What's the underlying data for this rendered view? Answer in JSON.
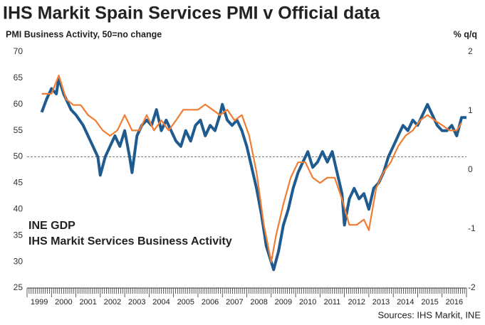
{
  "chart_data": {
    "type": "line",
    "title": "IHS Markit Spain Services PMI v Official data",
    "y_axis_label": "PMI Business Activity, 50=no change",
    "y2_axis_label": "% q/q",
    "source": "Sources: IHS Markit, INE",
    "xlim": [
      1999,
      2017
    ],
    "xticks": [
      {
        "value": 1999.5,
        "label": "1999"
      },
      {
        "value": 2000.5,
        "label": "2000"
      },
      {
        "value": 2001.5,
        "label": "2001"
      },
      {
        "value": 2002.5,
        "label": "2002"
      },
      {
        "value": 2003.5,
        "label": "2003"
      },
      {
        "value": 2004.5,
        "label": "2004"
      },
      {
        "value": 2005.5,
        "label": "2005"
      },
      {
        "value": 2006.5,
        "label": "2006"
      },
      {
        "value": 2007.5,
        "label": "2007"
      },
      {
        "value": 2008.5,
        "label": "2008"
      },
      {
        "value": 2009.5,
        "label": "2009"
      },
      {
        "value": 2010.5,
        "label": "2010"
      },
      {
        "value": 2011.5,
        "label": "2011"
      },
      {
        "value": 2012.5,
        "label": "2012"
      },
      {
        "value": 2013.5,
        "label": "2013"
      },
      {
        "value": 2014.5,
        "label": "2014"
      },
      {
        "value": 2015.5,
        "label": "2015"
      },
      {
        "value": 2016.5,
        "label": "2016"
      }
    ],
    "ylim": [
      25,
      70
    ],
    "yticks": [
      25,
      30,
      35,
      40,
      45,
      50,
      55,
      60,
      65,
      70
    ],
    "y2lim": [
      -2,
      2
    ],
    "y2ticks": [
      -2,
      -1,
      0,
      1,
      2
    ],
    "reference_line": 50,
    "series": [
      {
        "name": "INE GDP",
        "color": "#f07d32",
        "axis": "y2",
        "x": [
          1999.6,
          2000.0,
          2000.3,
          2000.6,
          2000.9,
          2001.2,
          2001.5,
          2001.8,
          2002.1,
          2002.4,
          2002.7,
          2003.0,
          2003.3,
          2003.6,
          2003.9,
          2004.2,
          2004.5,
          2004.8,
          2005.1,
          2005.4,
          2005.7,
          2006.0,
          2006.3,
          2006.6,
          2006.9,
          2007.2,
          2007.5,
          2007.8,
          2008.1,
          2008.4,
          2008.7,
          2009.0,
          2009.2,
          2009.5,
          2009.8,
          2010.1,
          2010.4,
          2010.7,
          2011.0,
          2011.3,
          2011.6,
          2011.9,
          2012.2,
          2012.5,
          2012.8,
          2013.0,
          2013.3,
          2013.6,
          2013.9,
          2014.2,
          2014.5,
          2014.8,
          2015.1,
          2015.4,
          2015.7,
          2016.0,
          2016.3,
          2016.6,
          2016.8
        ],
        "values": [
          1.29,
          1.29,
          1.6,
          1.2,
          1.1,
          1.1,
          0.93,
          0.84,
          0.67,
          0.58,
          0.67,
          0.93,
          0.67,
          0.67,
          0.93,
          0.67,
          0.84,
          0.67,
          0.84,
          1.02,
          1.02,
          1.02,
          1.11,
          1.02,
          0.93,
          1.02,
          0.84,
          0.93,
          0.58,
          -0.04,
          -0.93,
          -1.56,
          -1.11,
          -0.58,
          -0.13,
          0.13,
          0.13,
          -0.13,
          -0.22,
          -0.13,
          -0.13,
          -0.49,
          -0.93,
          -0.93,
          -0.84,
          -1.02,
          -0.31,
          -0.04,
          0.13,
          0.4,
          0.58,
          0.67,
          0.84,
          0.93,
          0.84,
          0.76,
          0.67,
          0.67,
          0.8
        ]
      },
      {
        "name": "IHS Markit Services Business Activity",
        "color": "#1f5b8e",
        "axis": "y",
        "x": [
          1999.6,
          1999.8,
          2000.0,
          2000.2,
          2000.3,
          2000.5,
          2000.8,
          2001.0,
          2001.3,
          2001.6,
          2001.9,
          2002.0,
          2002.2,
          2002.4,
          2002.6,
          2002.8,
          2003.0,
          2003.2,
          2003.3,
          2003.5,
          2003.7,
          2003.9,
          2004.1,
          2004.3,
          2004.5,
          2004.7,
          2004.9,
          2005.1,
          2005.3,
          2005.5,
          2005.7,
          2005.9,
          2006.1,
          2006.3,
          2006.5,
          2006.7,
          2006.9,
          2007.0,
          2007.2,
          2007.4,
          2007.6,
          2007.8,
          2008.0,
          2008.2,
          2008.4,
          2008.6,
          2008.8,
          2009.0,
          2009.1,
          2009.3,
          2009.5,
          2009.7,
          2009.9,
          2010.1,
          2010.3,
          2010.5,
          2010.7,
          2010.9,
          2011.1,
          2011.3,
          2011.5,
          2011.7,
          2011.9,
          2012.0,
          2012.2,
          2012.4,
          2012.6,
          2012.8,
          2013.0,
          2013.2,
          2013.4,
          2013.6,
          2013.8,
          2014.0,
          2014.2,
          2014.4,
          2014.6,
          2014.8,
          2015.0,
          2015.2,
          2015.4,
          2015.6,
          2015.8,
          2016.0,
          2016.2,
          2016.4,
          2016.6,
          2016.8,
          2017.0
        ],
        "values": [
          58.5,
          61,
          63,
          62,
          65,
          62,
          59,
          58,
          56,
          53,
          50,
          46.5,
          50,
          52,
          54,
          52,
          55,
          50,
          47,
          54,
          56,
          57,
          56,
          59,
          55,
          57,
          55,
          53,
          52,
          55,
          53,
          56,
          57,
          54,
          56,
          55,
          58,
          60,
          57,
          56,
          57,
          55,
          52,
          48,
          44,
          39,
          33,
          30,
          28.5,
          32,
          37,
          40,
          44,
          47,
          49,
          51,
          48,
          49,
          51,
          49,
          51,
          47,
          43,
          37,
          42,
          44,
          42,
          43,
          40,
          44,
          45,
          47,
          50,
          52,
          54,
          56,
          55,
          57,
          56,
          58,
          60,
          58,
          56,
          55,
          55,
          56,
          54,
          57.5,
          57.5
        ]
      }
    ]
  }
}
